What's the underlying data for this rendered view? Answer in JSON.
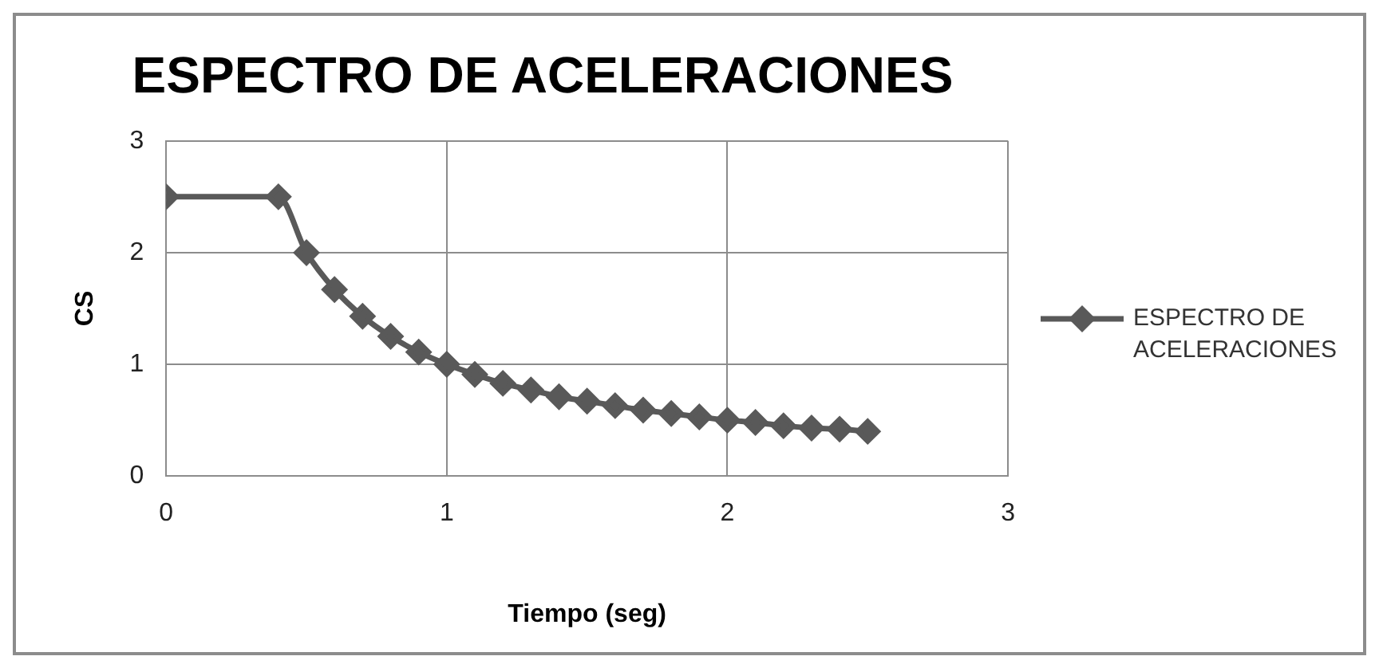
{
  "chart_data": {
    "type": "line",
    "title": "ESPECTRO DE ACELERACIONES",
    "xlabel": "Tiempo (seg)",
    "ylabel": "CS",
    "x": [
      0,
      0.4,
      0.5,
      0.6,
      0.7,
      0.8,
      0.9,
      1.0,
      1.1,
      1.2,
      1.3,
      1.4,
      1.5,
      1.6,
      1.7,
      1.8,
      1.9,
      2.0,
      2.1,
      2.2,
      2.3,
      2.4,
      2.5
    ],
    "series": [
      {
        "name": "ESPECTRO DE ACELERACIONES",
        "color": "#595959",
        "values": [
          2.5,
          2.5,
          2.0,
          1.67,
          1.43,
          1.25,
          1.11,
          1.0,
          0.91,
          0.83,
          0.77,
          0.71,
          0.67,
          0.63,
          0.59,
          0.56,
          0.53,
          0.5,
          0.48,
          0.45,
          0.43,
          0.42,
          0.4
        ]
      }
    ],
    "xlim": [
      0,
      3
    ],
    "xticks": [
      0,
      1,
      2,
      3
    ],
    "ylim": [
      0,
      3
    ],
    "yticks": [
      0,
      1,
      2,
      3
    ],
    "grid": true,
    "legend": "right",
    "marker": "diamond",
    "line_style": "solid"
  }
}
